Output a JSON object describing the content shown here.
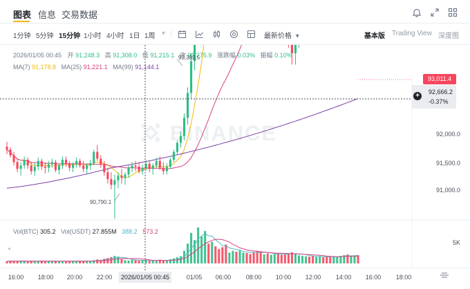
{
  "tabs": [
    {
      "label": "图表",
      "active": true
    },
    {
      "label": "信息",
      "active": false
    },
    {
      "label": "交易数据",
      "active": false
    }
  ],
  "icons": {
    "bell": "bell-icon",
    "expand": "expand-icon",
    "grid": "grid-icon"
  },
  "intervals": [
    "1分钟",
    "5分钟",
    "15分钟",
    "1小时",
    "4小时",
    "1日",
    "1周"
  ],
  "active_interval": "15分钟",
  "interval_more": "▾",
  "toolbar_icons": [
    "calendar-icon",
    "indicator-icon",
    "candle-type-icon",
    "settings-icon",
    "layout-icon"
  ],
  "price_type": {
    "label": "最新价格",
    "caret": "▾"
  },
  "views": [
    {
      "label": "基本版",
      "active": true
    },
    {
      "label": "Trading View",
      "active": false
    },
    {
      "label": "深度图",
      "active": false
    }
  ],
  "ohlc": {
    "date": "2026/01/05 00:45",
    "open_label": "开",
    "open": "91,248.3",
    "high_label": "高",
    "high": "91,308.0",
    "low_label": "低",
    "low": "91,215.1",
    "close_label": "收",
    "close": "91,275.9",
    "change_label": "涨跌幅",
    "change": "0.03%",
    "amp_label": "振幅",
    "amp": "0.10%"
  },
  "ma": [
    {
      "label": "MA(7)",
      "value": "91,178.8",
      "color": "#f0b90b"
    },
    {
      "label": "MA(25)",
      "value": "91,221.1",
      "color": "#d6407f"
    },
    {
      "label": "MA(99)",
      "value": "91,144.1",
      "color": "#7a3fa6"
    }
  ],
  "watermark": "BINANCE",
  "price_axis": [
    "92,000.0",
    "91,500.0",
    "91,000.0"
  ],
  "current_price": "93,011.4",
  "crosshair": {
    "price": "92,666.2",
    "pct": "-0.37%",
    "plus": "+"
  },
  "max_label": "93,382.5",
  "min_label": "90,790.1",
  "volume": {
    "label": "Vol(BTC)",
    "value": "305.2",
    "usdt_label": "Vol(USDT)",
    "usdt_value": "27.855M",
    "ma1": "388.2",
    "ma1_color": "#53b9c6",
    "ma2": "573.2",
    "ma2_color": "#d6407f",
    "axis": "5K"
  },
  "time_axis": [
    "16:00",
    "18:00",
    "20:00",
    "22:00",
    "2026/01/05 00:45",
    "01/05",
    "06:00",
    "08:00",
    "10:00",
    "12:00",
    "14:00",
    "16:00",
    "18:00"
  ],
  "colors": {
    "up": "#2ebd85",
    "down": "#f6465d",
    "accent": "#f0b90b"
  },
  "chart_data": {
    "type": "candlestick",
    "interval": "15分钟",
    "ylim": [
      90650,
      93450
    ],
    "candles": [
      [
        91425,
        91470,
        91360,
        91400
      ],
      [
        91400,
        91420,
        91330,
        91350
      ],
      [
        91350,
        91380,
        91260,
        91290
      ],
      [
        91290,
        91320,
        91200,
        91230
      ],
      [
        91230,
        91290,
        91170,
        91260
      ],
      [
        91260,
        91340,
        91230,
        91310
      ],
      [
        91310,
        91330,
        91230,
        91260
      ],
      [
        91260,
        91290,
        91180,
        91210
      ],
      [
        91210,
        91280,
        91170,
        91250
      ],
      [
        91250,
        91330,
        91220,
        91300
      ],
      [
        91300,
        91320,
        91220,
        91250
      ],
      [
        91250,
        91290,
        91190,
        91240
      ],
      [
        91240,
        91300,
        91200,
        91270
      ],
      [
        91270,
        91320,
        91240,
        91290
      ],
      [
        91290,
        91310,
        91200,
        91220
      ],
      [
        91220,
        91280,
        91180,
        91260
      ],
      [
        91260,
        91340,
        91230,
        91310
      ],
      [
        91310,
        91340,
        91250,
        91280
      ],
      [
        91280,
        91300,
        91210,
        91240
      ],
      [
        91240,
        91290,
        91200,
        91270
      ],
      [
        91270,
        91330,
        91240,
        91300
      ],
      [
        91300,
        91320,
        91240,
        91260
      ],
      [
        91260,
        91300,
        91200,
        91230
      ],
      [
        91230,
        91280,
        91190,
        91260
      ],
      [
        91260,
        91310,
        91220,
        91280
      ],
      [
        91280,
        91400,
        91260,
        91380
      ],
      [
        91380,
        91440,
        91300,
        91320
      ],
      [
        91320,
        91350,
        91240,
        91270
      ],
      [
        91270,
        91300,
        91170,
        91200
      ],
      [
        91200,
        91240,
        91100,
        91140
      ],
      [
        91140,
        91200,
        91050,
        91090
      ],
      [
        91090,
        91180,
        90790,
        91130
      ],
      [
        91130,
        91200,
        91060,
        91170
      ],
      [
        91170,
        91230,
        91100,
        91150
      ],
      [
        91150,
        91200,
        91090,
        91180
      ],
      [
        91180,
        91260,
        91150,
        91240
      ],
      [
        91240,
        91290,
        91200,
        91260
      ],
      [
        91260,
        91300,
        91210,
        91250
      ],
      [
        91250,
        91290,
        91190,
        91210
      ],
      [
        91210,
        91270,
        91180,
        91240
      ],
      [
        91240,
        91308,
        91215,
        91276
      ],
      [
        91276,
        91300,
        91200,
        91230
      ],
      [
        91230,
        91280,
        91180,
        91260
      ],
      [
        91260,
        91330,
        91240,
        91300
      ],
      [
        91300,
        91340,
        91220,
        91240
      ],
      [
        91240,
        91290,
        91180,
        91210
      ],
      [
        91210,
        91280,
        91180,
        91250
      ],
      [
        91250,
        91330,
        91230,
        91310
      ],
      [
        91310,
        91400,
        91290,
        91380
      ],
      [
        91380,
        91480,
        91350,
        91460
      ],
      [
        91460,
        91560,
        91420,
        91520
      ],
      [
        91520,
        91720,
        91480,
        91680
      ],
      [
        91680,
        91950,
        91620,
        91900
      ],
      [
        91900,
        92250,
        91850,
        92180
      ],
      [
        92180,
        92500,
        92100,
        92420
      ],
      [
        92420,
        92700,
        92350,
        92650
      ],
      [
        92650,
        92900,
        92600,
        92850
      ],
      [
        92850,
        93200,
        92800,
        93150
      ],
      [
        93150,
        93250,
        92950,
        93000
      ],
      [
        93000,
        93382,
        92950,
        93300
      ],
      [
        93300,
        93350,
        93100,
        93150
      ],
      [
        93150,
        93200,
        92980,
        93050
      ],
      [
        93050,
        93100,
        92850,
        92900
      ],
      [
        92900,
        92950,
        92600,
        92650
      ],
      [
        92650,
        92900,
        92450,
        92800
      ],
      [
        92800,
        93000,
        92750,
        92950
      ],
      [
        92950,
        93050,
        92800,
        92850
      ],
      [
        92850,
        93100,
        92800,
        93050
      ],
      [
        93050,
        93150,
        92950,
        93100
      ],
      [
        93100,
        93150,
        92980,
        93020
      ],
      [
        93020,
        93080,
        92880,
        92920
      ],
      [
        92920,
        92960,
        92750,
        92800
      ],
      [
        92800,
        92850,
        92600,
        92650
      ],
      [
        92650,
        92700,
        92450,
        92500
      ],
      [
        92500,
        92650,
        92400,
        92600
      ],
      [
        92600,
        92700,
        92450,
        92480
      ],
      [
        92480,
        92600,
        92380,
        92550
      ],
      [
        92550,
        92700,
        92500,
        92650
      ],
      [
        92650,
        92720,
        92550,
        92600
      ],
      [
        92600,
        92650,
        92450,
        92500
      ],
      [
        92500,
        92600,
        92380,
        92420
      ],
      [
        92420,
        92500,
        92300,
        92350
      ],
      [
        92350,
        92450,
        92150,
        92250
      ],
      [
        92250,
        92380,
        92150,
        92330
      ],
      [
        92330,
        92480,
        92300,
        92450
      ],
      [
        92450,
        92560,
        92380,
        92520
      ],
      [
        92520,
        92620,
        92450,
        92580
      ],
      [
        92580,
        92640,
        92500,
        92550
      ],
      [
        92550,
        92600,
        92420,
        92480
      ],
      [
        92480,
        92560,
        92430,
        92520
      ],
      [
        92520,
        92650,
        92480,
        92620
      ],
      [
        92620,
        92680,
        92550,
        92600
      ],
      [
        92600,
        92640,
        92480,
        92520
      ],
      [
        92520,
        92560,
        92380,
        92420
      ],
      [
        92420,
        92480,
        92330,
        92450
      ],
      [
        92450,
        92600,
        92420,
        92560
      ],
      [
        92560,
        92720,
        92520,
        92680
      ],
      [
        92680,
        92860,
        92620,
        92820
      ],
      [
        92820,
        92900,
        92650,
        92700
      ],
      [
        92700,
        92950,
        92680,
        92920
      ],
      [
        92920,
        93120,
        92880,
        93080
      ],
      [
        93080,
        93090,
        92980,
        93011
      ]
    ],
    "volume": [
      120,
      140,
      110,
      130,
      160,
      120,
      100,
      140,
      110,
      130,
      150,
      120,
      110,
      130,
      140,
      120,
      100,
      130,
      120,
      140,
      150,
      130,
      110,
      140,
      120,
      180,
      220,
      200,
      260,
      300,
      350,
      420,
      380,
      240,
      180,
      160,
      200,
      190,
      150,
      170,
      150,
      140,
      160,
      180,
      210,
      160,
      150,
      230,
      280,
      340,
      400,
      700,
      1100,
      1700,
      1300,
      2000,
      1500,
      1800,
      1100,
      1200,
      950,
      800,
      900,
      1050,
      600,
      700,
      650,
      720,
      600,
      580,
      520,
      640,
      700,
      680,
      500,
      560,
      480,
      520,
      560,
      480,
      500,
      540,
      620,
      560,
      450,
      420,
      400,
      380,
      420,
      360,
      380,
      340,
      360,
      400,
      380,
      350,
      420,
      460,
      500,
      380,
      420,
      460
    ]
  }
}
